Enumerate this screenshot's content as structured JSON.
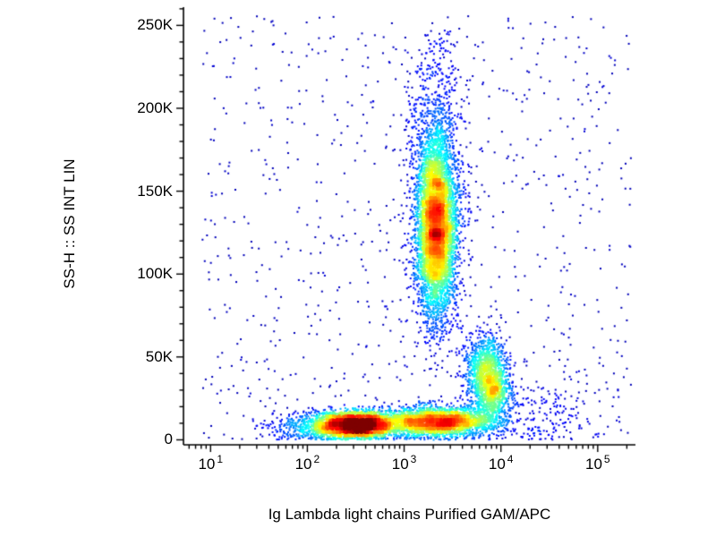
{
  "chart_data": {
    "type": "scatter",
    "variant": "flow-cytometry-pseudocolor-density",
    "title": "",
    "xlabel": "Ig Lambda light chains Purified GAM/APC",
    "ylabel": "SS-H :: SS INT LIN",
    "x_scale": "log10",
    "x_log_range": [
      0.72,
      5.39
    ],
    "y_scale": "linear",
    "y_range": [
      -3000,
      261000
    ],
    "x_major_ticks": [
      {
        "base": "10",
        "exp": "1",
        "log": 1
      },
      {
        "base": "10",
        "exp": "2",
        "log": 2
      },
      {
        "base": "10",
        "exp": "3",
        "log": 3
      },
      {
        "base": "10",
        "exp": "4",
        "log": 4
      },
      {
        "base": "10",
        "exp": "5",
        "log": 5
      }
    ],
    "y_major_ticks": [
      {
        "label": "0",
        "value": 0
      },
      {
        "label": "50K",
        "value": 50000
      },
      {
        "label": "100K",
        "value": 100000
      },
      {
        "label": "150K",
        "value": 150000
      },
      {
        "label": "200K",
        "value": 200000
      },
      {
        "label": "250K",
        "value": 250000
      }
    ],
    "y_minor_step": 10000,
    "grid": false,
    "legend": false,
    "colormap": "jet",
    "axis_color": "#000000",
    "background_color": "#ffffff",
    "point_size": 2,
    "random_seed": 42,
    "clusters": [
      {
        "name": "granulocytes-core",
        "x_log_mean": 3.33,
        "x_log_sd": 0.1,
        "y_mean": 128000,
        "y_sd": 26000,
        "count": 4800
      },
      {
        "name": "granulocytes-diffuse",
        "x_log_mean": 3.33,
        "x_log_sd": 0.15,
        "y_mean": 155000,
        "y_sd": 45000,
        "count": 1400
      },
      {
        "name": "debris-band-left",
        "x_log_mean": 2.5,
        "x_log_sd": 0.22,
        "y_mean": 9000,
        "y_sd": 4000,
        "count": 3200
      },
      {
        "name": "debris-band-right",
        "x_log_mean": 3.35,
        "x_log_sd": 0.3,
        "y_mean": 11000,
        "y_sd": 4500,
        "count": 2800
      },
      {
        "name": "band-left-tail",
        "x_log_mean": 2.0,
        "x_log_sd": 0.25,
        "y_mean": 8000,
        "y_sd": 5000,
        "count": 350
      },
      {
        "name": "lambda-positive-upper",
        "x_log_mean": 3.85,
        "x_log_sd": 0.11,
        "y_mean": 42000,
        "y_sd": 11000,
        "count": 1100
      },
      {
        "name": "lambda-positive-lower",
        "x_log_mean": 3.92,
        "x_log_sd": 0.09,
        "y_mean": 28000,
        "y_sd": 7000,
        "count": 600
      },
      {
        "name": "scatter-right-sparse",
        "x_log_mean": 4.35,
        "x_log_sd": 0.4,
        "y_mean": 15000,
        "y_sd": 12000,
        "count": 250
      }
    ],
    "background_points": {
      "count": 800,
      "x_log_range": [
        0.9,
        5.35
      ],
      "y_range": [
        0,
        256000
      ]
    }
  }
}
